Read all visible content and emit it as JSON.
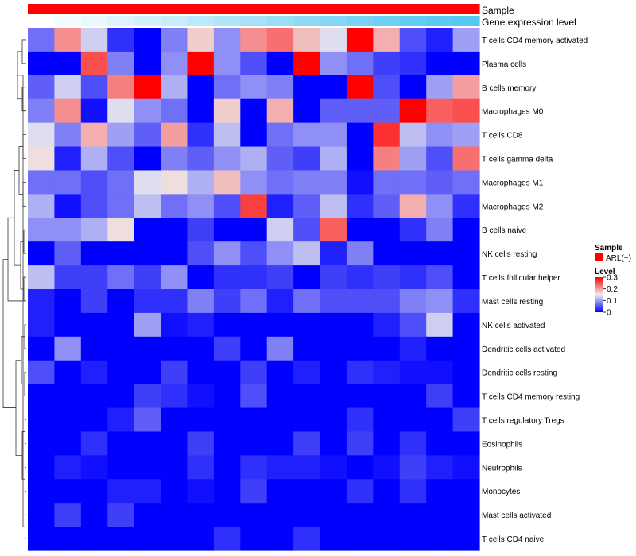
{
  "chart_data": {
    "type": "heatmap",
    "annotation_tracks": [
      {
        "name": "Sample",
        "label": "Sample"
      },
      {
        "name": "Gene expression level",
        "label": "Gene expression level"
      }
    ],
    "rows": [
      "T cells CD4 memory activated",
      "Plasma cells",
      "B cells memory",
      "Macrophages M0",
      "T cells CD8",
      "T cells gamma delta",
      "Macrophages M1",
      "Macrophages M2",
      "B cells naive",
      "NK cells resting",
      "T cells follicular helper",
      "Mast cells resting",
      "NK cells activated",
      "Dendritic cells activated",
      "Dendritic cells resting",
      "T cells CD4 memory resting",
      "T cells regulatory  Tregs",
      "Eosinophils",
      "Neutrophils",
      "Monocytes",
      "Mast cells activated",
      "T cells CD4 naive"
    ],
    "values": [
      [
        0.07,
        0.21,
        0.13,
        0.03,
        0.0,
        0.08,
        0.17,
        0.09,
        0.21,
        0.23,
        0.18,
        0.14,
        0.3,
        0.19,
        0.05,
        0.02,
        0.1
      ],
      [
        0.0,
        0.0,
        0.25,
        0.08,
        0.0,
        0.09,
        0.3,
        0.09,
        0.05,
        0.0,
        0.3,
        0.09,
        0.07,
        0.04,
        0.03,
        0.0,
        0.0
      ],
      [
        0.06,
        0.13,
        0.05,
        0.22,
        0.3,
        0.11,
        0.0,
        0.07,
        0.09,
        0.08,
        0.0,
        0.0,
        0.3,
        0.05,
        0.0,
        0.1,
        0.2
      ],
      [
        0.08,
        0.21,
        0.01,
        0.14,
        0.09,
        0.07,
        0.0,
        0.17,
        0.0,
        0.19,
        0.0,
        0.06,
        0.06,
        0.06,
        0.3,
        0.24,
        0.25
      ],
      [
        0.14,
        0.08,
        0.19,
        0.1,
        0.06,
        0.2,
        0.03,
        0.12,
        0.0,
        0.07,
        0.09,
        0.09,
        0.0,
        0.27,
        0.12,
        0.09,
        0.1
      ],
      [
        0.16,
        0.02,
        0.11,
        0.05,
        0.0,
        0.08,
        0.06,
        0.09,
        0.11,
        0.06,
        0.04,
        0.11,
        0.0,
        0.22,
        0.1,
        0.05,
        0.23
      ],
      [
        0.07,
        0.07,
        0.05,
        0.07,
        0.14,
        0.16,
        0.11,
        0.18,
        0.09,
        0.07,
        0.08,
        0.08,
        0.01,
        0.07,
        0.07,
        0.06,
        0.07
      ],
      [
        0.11,
        0.01,
        0.05,
        0.07,
        0.12,
        0.07,
        0.09,
        0.05,
        0.26,
        0.02,
        0.06,
        0.12,
        0.03,
        0.06,
        0.19,
        0.09,
        0.03
      ],
      [
        0.09,
        0.09,
        0.11,
        0.16,
        0.0,
        0.0,
        0.04,
        0.0,
        0.0,
        0.13,
        0.05,
        0.24,
        0.0,
        0.0,
        0.03,
        0.08,
        0.0
      ],
      [
        0.0,
        0.06,
        0.0,
        0.0,
        0.0,
        0.0,
        0.05,
        0.09,
        0.05,
        0.09,
        0.12,
        0.02,
        0.08,
        0.0,
        0.0,
        0.0,
        0.0
      ],
      [
        0.12,
        0.04,
        0.04,
        0.07,
        0.04,
        0.09,
        0.0,
        0.03,
        0.03,
        0.04,
        0.0,
        0.04,
        0.03,
        0.04,
        0.03,
        0.05,
        0.0
      ],
      [
        0.02,
        0.0,
        0.04,
        0.0,
        0.03,
        0.03,
        0.08,
        0.04,
        0.07,
        0.02,
        0.07,
        0.05,
        0.05,
        0.05,
        0.08,
        0.09,
        0.03
      ],
      [
        0.02,
        0.0,
        0.0,
        0.0,
        0.1,
        0.01,
        0.02,
        0.0,
        0.0,
        0.0,
        0.0,
        0.0,
        0.0,
        0.02,
        0.05,
        0.13,
        0.0
      ],
      [
        0.0,
        0.09,
        0.0,
        0.0,
        0.0,
        0.0,
        0.0,
        0.04,
        0.0,
        0.08,
        0.0,
        0.0,
        0.0,
        0.0,
        0.02,
        0.0,
        0.0
      ],
      [
        0.05,
        0.0,
        0.02,
        0.0,
        0.0,
        0.04,
        0.0,
        0.0,
        0.04,
        0.0,
        0.02,
        0.0,
        0.03,
        0.02,
        0.01,
        0.01,
        0.0
      ],
      [
        0.0,
        0.0,
        0.0,
        0.0,
        0.04,
        0.03,
        0.01,
        0.0,
        0.05,
        0.0,
        0.0,
        0.0,
        0.0,
        0.0,
        0.0,
        0.04,
        0.0
      ],
      [
        0.0,
        0.0,
        0.0,
        0.02,
        0.06,
        0.0,
        0.0,
        0.0,
        0.0,
        0.0,
        0.0,
        0.0,
        0.03,
        0.0,
        0.0,
        0.0,
        0.04
      ],
      [
        0.0,
        0.0,
        0.03,
        0.0,
        0.0,
        0.0,
        0.04,
        0.0,
        0.0,
        0.0,
        0.04,
        0.0,
        0.04,
        0.0,
        0.03,
        0.0,
        0.0
      ],
      [
        0.0,
        0.02,
        0.01,
        0.0,
        0.0,
        0.0,
        0.03,
        0.0,
        0.03,
        0.02,
        0.02,
        0.01,
        0.0,
        0.01,
        0.04,
        0.02,
        0.01
      ],
      [
        0.0,
        0.0,
        0.0,
        0.02,
        0.02,
        0.0,
        0.01,
        0.0,
        0.04,
        0.0,
        0.0,
        0.0,
        0.03,
        0.0,
        0.03,
        0.0,
        0.0
      ],
      [
        0.0,
        0.04,
        0.0,
        0.04,
        0.0,
        0.0,
        0.0,
        0.0,
        0.0,
        0.0,
        0.0,
        0.0,
        0.0,
        0.0,
        0.0,
        0.0,
        0.0
      ],
      [
        0.0,
        0.0,
        0.0,
        0.0,
        0.0,
        0.0,
        0.0,
        0.03,
        0.0,
        0.0,
        0.03,
        0.0,
        0.0,
        0.0,
        0.0,
        0.0,
        0.0
      ]
    ],
    "gene_expression_level": [
      0.0,
      0.07,
      0.13,
      0.2,
      0.26,
      0.33,
      0.4,
      0.46,
      0.53,
      0.6,
      0.66,
      0.73,
      0.8,
      0.86,
      0.93,
      0.97,
      1.0
    ],
    "sample_group": "ARL(+)",
    "color_scale": {
      "min": 0,
      "max": 0.3,
      "low": "#0000ff",
      "mid": "#eeeeee",
      "high": "#ff0000",
      "mid_value": 0.15
    },
    "legend": {
      "sample_title": "Sample",
      "sample_entry": "ARL(+)",
      "sample_color": "#ff0000",
      "level_title": "Level",
      "level_ticks": [
        "0.3",
        "0.2",
        "0.1",
        "0"
      ],
      "level_tick_values": [
        0.3,
        0.2,
        0.1,
        0
      ]
    },
    "track_colors": {
      "sample": "#ff0000",
      "expression_low": "#ffffff",
      "expression_high": "#56c8f0"
    },
    "dendrogram": "row-clustering"
  }
}
